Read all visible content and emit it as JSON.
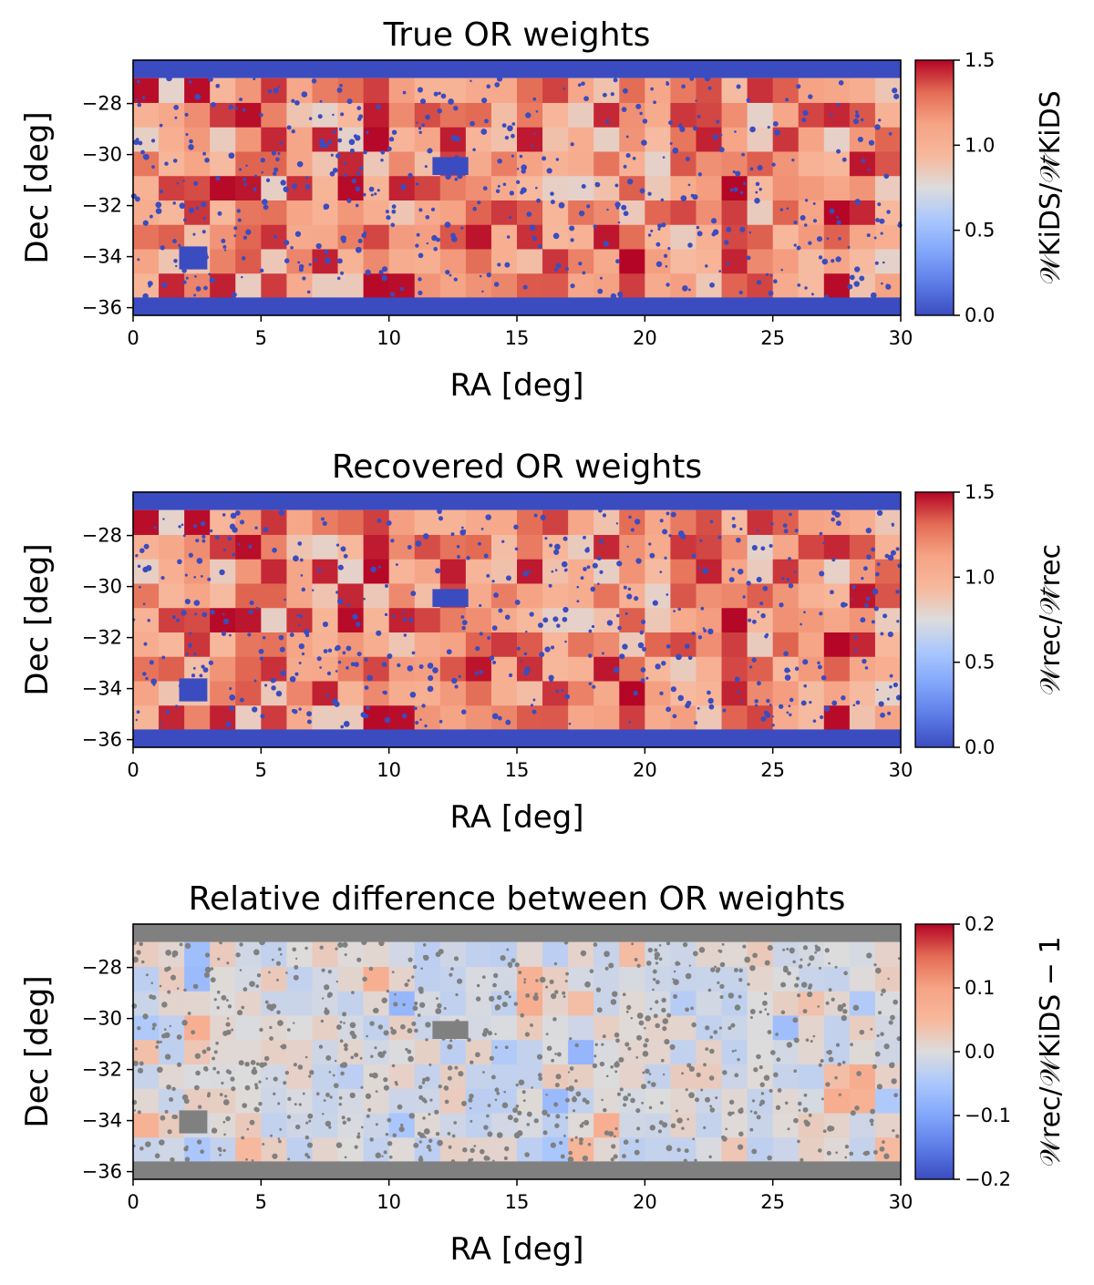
{
  "figure": {
    "panels": [
      {
        "title": "True OR weights",
        "xlabel": "RA [deg]",
        "ylabel": "Dec [deg]",
        "colorbar_label": "𝒲KiDS/𝒲̄KiDS",
        "colorbar_ticks": [
          "1.5",
          "1.0",
          "0.5",
          "0.0"
        ]
      },
      {
        "title": "Recovered OR weights",
        "xlabel": "RA [deg]",
        "ylabel": "Dec [deg]",
        "colorbar_label": "𝒲rec/𝒲̄rec",
        "colorbar_ticks": [
          "1.5",
          "1.0",
          "0.5",
          "0.0"
        ]
      },
      {
        "title": "Relative difference between OR weights",
        "xlabel": "RA [deg]",
        "ylabel": "Dec [deg]",
        "colorbar_label": "𝒲rec/𝒲KiDS − 1",
        "colorbar_ticks": [
          "0.2",
          "0.1",
          "0.0",
          "−0.1",
          "−0.2"
        ]
      }
    ]
  },
  "chart_data": [
    {
      "type": "heatmap",
      "title": "True OR weights",
      "xlabel": "RA [deg]",
      "ylabel": "Dec [deg]",
      "xlim": [
        0,
        30
      ],
      "ylim": [
        -36.3,
        -26.3
      ],
      "xticks": [
        "0",
        "5",
        "10",
        "15",
        "20",
        "25",
        "30"
      ],
      "yticks": [
        "−28",
        "−30",
        "−32",
        "−34",
        "−36"
      ],
      "colormap": "coolwarm",
      "clim": [
        0.0,
        1.5
      ],
      "colorbar_label": "𝒲KiDS/𝒲̄KiDS",
      "colorbar_ticks": [
        "1.5",
        "1.0",
        "0.5",
        "0.0"
      ],
      "masked_regions": [
        {
          "name": "north-strip",
          "ra": [
            0,
            30
          ],
          "dec": [
            -27.0,
            -26.3
          ],
          "value": 0.0
        },
        {
          "name": "south-strip",
          "ra": [
            0,
            30
          ],
          "dec": [
            -36.3,
            -35.6
          ],
          "value": 0.0
        },
        {
          "name": "hole-a",
          "ra": [
            11.7,
            13.1
          ],
          "dec": [
            -30.8,
            -30.1
          ],
          "value": 0.0
        },
        {
          "name": "hole-b",
          "ra": [
            1.8,
            2.9
          ],
          "dec": [
            -34.5,
            -33.6
          ],
          "value": 0.0
        }
      ],
      "tile_value_range": [
        0.8,
        1.5
      ]
    },
    {
      "type": "heatmap",
      "title": "Recovered OR weights",
      "xlabel": "RA [deg]",
      "ylabel": "Dec [deg]",
      "xlim": [
        0,
        30
      ],
      "ylim": [
        -36.3,
        -26.3
      ],
      "xticks": [
        "0",
        "5",
        "10",
        "15",
        "20",
        "25",
        "30"
      ],
      "yticks": [
        "−28",
        "−30",
        "−32",
        "−34",
        "−36"
      ],
      "colormap": "coolwarm",
      "clim": [
        0.0,
        1.5
      ],
      "colorbar_label": "𝒲rec/𝒲̄rec",
      "colorbar_ticks": [
        "1.5",
        "1.0",
        "0.5",
        "0.0"
      ],
      "masked_regions": [
        {
          "name": "north-strip",
          "ra": [
            0,
            30
          ],
          "dec": [
            -27.0,
            -26.3
          ],
          "value": 0.0
        },
        {
          "name": "south-strip",
          "ra": [
            0,
            30
          ],
          "dec": [
            -36.3,
            -35.6
          ],
          "value": 0.0
        },
        {
          "name": "hole-a",
          "ra": [
            11.7,
            13.1
          ],
          "dec": [
            -30.8,
            -30.1
          ],
          "value": 0.0
        },
        {
          "name": "hole-b",
          "ra": [
            1.8,
            2.9
          ],
          "dec": [
            -34.5,
            -33.6
          ],
          "value": 0.0
        }
      ],
      "tile_value_range": [
        0.8,
        1.5
      ]
    },
    {
      "type": "heatmap",
      "title": "Relative difference between OR weights",
      "xlabel": "RA [deg]",
      "ylabel": "Dec [deg]",
      "xlim": [
        0,
        30
      ],
      "ylim": [
        -36.3,
        -26.3
      ],
      "xticks": [
        "0",
        "5",
        "10",
        "15",
        "20",
        "25",
        "30"
      ],
      "yticks": [
        "−28",
        "−30",
        "−32",
        "−34",
        "−36"
      ],
      "colormap": "coolwarm",
      "clim": [
        -0.2,
        0.2
      ],
      "colorbar_label": "𝒲rec/𝒲KiDS − 1",
      "colorbar_ticks": [
        "0.2",
        "0.1",
        "0.0",
        "−0.1",
        "−0.2"
      ],
      "masked_color": "#808080",
      "masked_regions": [
        {
          "name": "north-strip",
          "ra": [
            0,
            30
          ],
          "dec": [
            -27.0,
            -26.3
          ]
        },
        {
          "name": "south-strip",
          "ra": [
            0,
            30
          ],
          "dec": [
            -36.3,
            -35.6
          ]
        },
        {
          "name": "hole-a",
          "ra": [
            11.7,
            13.1
          ],
          "dec": [
            -30.8,
            -30.1
          ]
        },
        {
          "name": "hole-b",
          "ra": [
            1.8,
            2.9
          ],
          "dec": [
            -34.5,
            -33.6
          ]
        }
      ],
      "tile_value_range": [
        -0.08,
        0.08
      ]
    }
  ],
  "colors": {
    "cmap_low": "#3b4cc0",
    "cmap_mid": "#dddddd",
    "cmap_high": "#b40426",
    "mask_gray": "#808080"
  }
}
